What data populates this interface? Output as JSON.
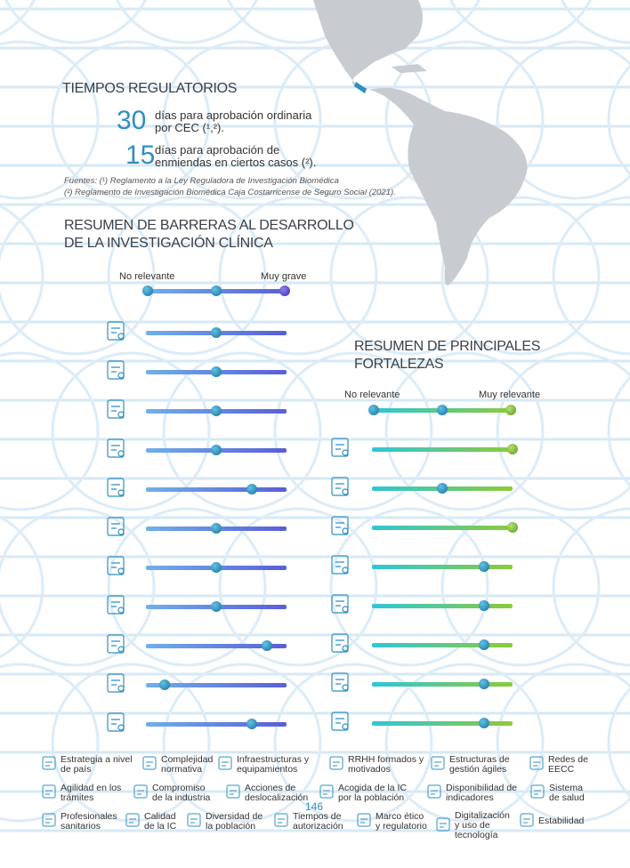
{
  "regulatory": {
    "title": "TIEMPOS REGULATORIOS",
    "items": [
      {
        "number": "30",
        "text1": "días para aprobación ordinaria",
        "text2": "por CEC (¹,²)."
      },
      {
        "number": "15",
        "text1": "días para aprobación de",
        "text2": "enmiendas en ciertos casos (²)."
      }
    ],
    "sources": [
      "Fuentes: (¹) Reglamento a la Ley Reguladora de Investigación Biomédica",
      "(²) Reglamento de Investigación Biomédica Caja Costarricense de Seguro Social (2021)."
    ]
  },
  "barriers": {
    "title1": "RESUMEN DE BARRERAS AL DESARROLLO",
    "title2": "DE LA INVESTIGACIÓN CLÍNICA",
    "scale_low": "No relevante",
    "scale_high": "Muy grave",
    "rows": [
      {
        "name": "Estrategia a nivel de país",
        "value": 0.5
      },
      {
        "name": "Complejidad normativa",
        "value": 0.5
      },
      {
        "name": "Infraestructuras y equipamientos",
        "value": 0.5
      },
      {
        "name": "RRHH formados y motivados",
        "value": 0.5
      },
      {
        "name": "Estructuras de gestión ágiles",
        "value": 0.75
      },
      {
        "name": "Redes de EECC",
        "value": 0.5
      },
      {
        "name": "Agilidad en los trámites",
        "value": 0.5
      },
      {
        "name": "Compromiso de la industria",
        "value": 0.5
      },
      {
        "name": "Acciones de deslocalización",
        "value": 0.86
      },
      {
        "name": "Acogida de la IC por la población",
        "value": 0.13
      },
      {
        "name": "Disponibilidad de indicadores",
        "value": 0.75
      }
    ]
  },
  "strengths": {
    "title1": "RESUMEN DE PRINCIPALES",
    "title2": "FORTALEZAS",
    "scale_low": "No relevante",
    "scale_high": "Muy relevante",
    "rows": [
      {
        "name": "Sistema de salud",
        "value": 1.0
      },
      {
        "name": "Profesionales sanitarios",
        "value": 0.5
      },
      {
        "name": "Calidad de la IC",
        "value": 1.0
      },
      {
        "name": "Diversidad de la población",
        "value": 0.8
      },
      {
        "name": "Tiempos de autorización",
        "value": 0.8
      },
      {
        "name": "Marco ético y regulatorio",
        "value": 0.8
      },
      {
        "name": "Digitalización y uso de tecnología",
        "value": 0.8
      },
      {
        "name": "Estabilidad",
        "value": 0.8
      }
    ]
  },
  "legend": [
    [
      "Estrategia a nivel",
      "de país"
    ],
    [
      "Complejidad",
      "normativa"
    ],
    [
      "Infraestructuras y",
      "equipamientos"
    ],
    [
      "RRHH formados y",
      "motivados"
    ],
    [
      "Estructuras de",
      "gestión ágiles"
    ],
    [
      "Redes de",
      "EECC"
    ],
    [
      "Agilidad en los",
      "trámites"
    ],
    [
      "Compromiso",
      "de la industria"
    ],
    [
      "Acciones de",
      "deslocalización"
    ],
    [
      "Acogida de la IC",
      "por la población"
    ],
    [
      "Disponibilidad de",
      "indicadores"
    ],
    [
      "Sistema",
      "de salud"
    ],
    [
      "Profesionales",
      "sanitarios"
    ],
    [
      "Calidad",
      "de la IC"
    ],
    [
      "Diversidad de",
      "la población"
    ],
    [
      "Tiempos de",
      "autorización"
    ],
    [
      "Marco ético",
      "y regulatorio"
    ],
    [
      "Digitalización",
      "y uso de",
      "tecnología"
    ],
    [
      "Estabilidad"
    ]
  ],
  "page_number": "146",
  "colors": {
    "accent": "#2f8fc0",
    "barrier_start": "#6fb0ea",
    "barrier_end": "#5a5ed8",
    "strength_start": "#2fc6d8",
    "strength_end": "#8dca3a"
  }
}
